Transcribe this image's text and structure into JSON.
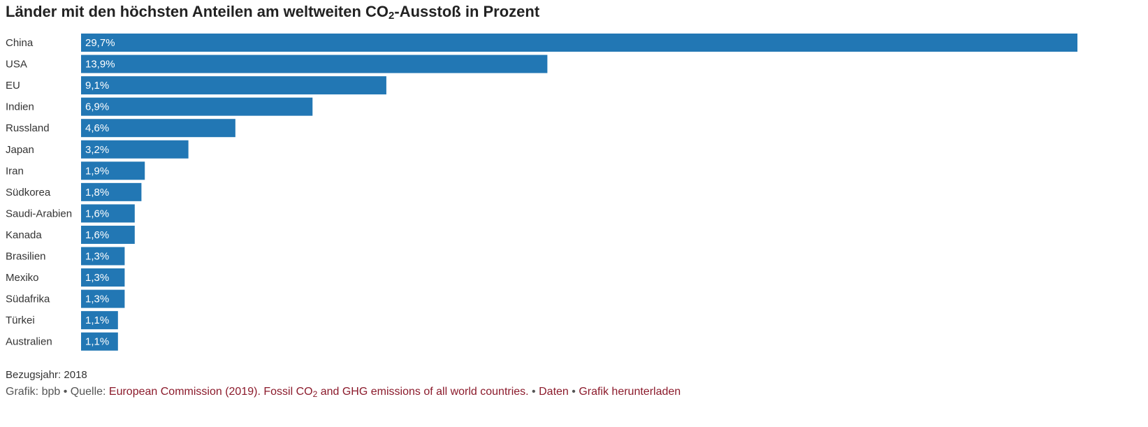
{
  "title": {
    "prefix": "Länder mit den höchsten Anteilen am weltweiten CO",
    "subscript": "2",
    "suffix": "-Ausstoß in Prozent"
  },
  "chart_data": {
    "type": "bar",
    "orientation": "horizontal",
    "categories": [
      "China",
      "USA",
      "EU",
      "Indien",
      "Russland",
      "Japan",
      "Iran",
      "Südkorea",
      "Saudi-Arabien",
      "Kanada",
      "Brasilien",
      "Mexiko",
      "Südafrika",
      "Türkei",
      "Australien"
    ],
    "values": [
      29.7,
      13.9,
      9.1,
      6.9,
      4.6,
      3.2,
      1.9,
      1.8,
      1.6,
      1.6,
      1.3,
      1.3,
      1.3,
      1.1,
      1.1
    ],
    "value_labels": [
      "29,7%",
      "13,9%",
      "9,1%",
      "6,9%",
      "4,6%",
      "3,2%",
      "1,9%",
      "1,8%",
      "1,6%",
      "1,6%",
      "1,3%",
      "1,3%",
      "1,3%",
      "1,1%",
      "1,1%"
    ],
    "bar_color": "#2277b4",
    "xlim": [
      0,
      29.7
    ],
    "grid": false,
    "legend": "none"
  },
  "note": "Bezugsjahr: 2018",
  "footer": {
    "grafik_label": "Grafik: bpb",
    "separator": " • ",
    "quelle_label": "Quelle: ",
    "source_prefix": "European Commission (2019). Fossil CO",
    "source_subscript": "2",
    "source_suffix": " and GHG emissions of all world countries.",
    "daten_link": "Daten",
    "download_link": "Grafik herunterladen",
    "link_color": "#8b1a2b"
  }
}
